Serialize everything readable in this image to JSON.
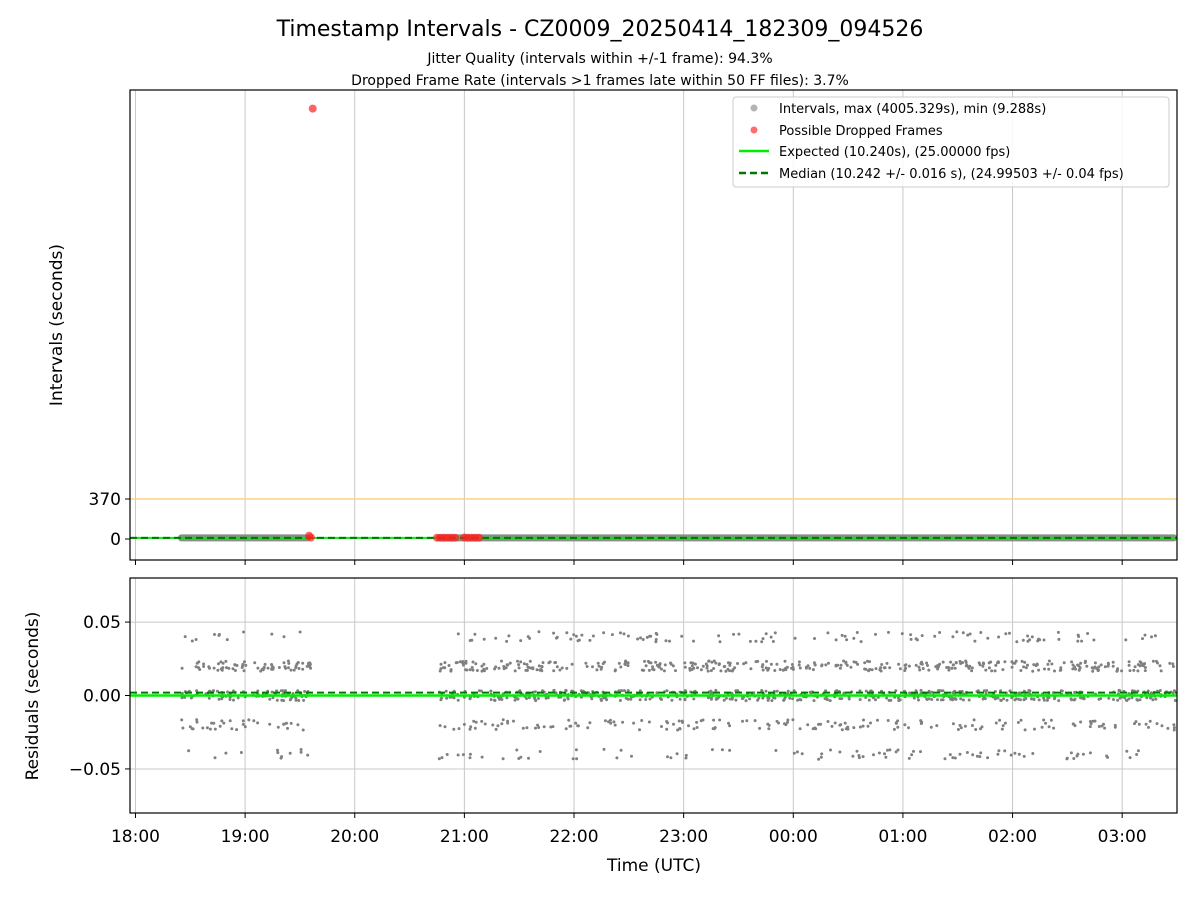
{
  "chart_data": [
    {
      "type": "scatter",
      "title": "Timestamp Intervals - CZ0009_20250414_182309_094526",
      "subtitle_1": "Jitter Quality (intervals within +/-1 frame): 94.3%",
      "subtitle_2": "Dropped Frame Rate (intervals >1 frames late within 50 FF files): 3.7%",
      "ylabel": "Intervals (seconds)",
      "yticks": [
        "0",
        "370"
      ],
      "threshold_line": 370,
      "grid": "vertical",
      "legend_position": "top-right",
      "legend": [
        "Intervals, max (4005.329s), min (9.288s)",
        "Possible Dropped Frames",
        "Expected (10.240s), (25.00000 fps)",
        "Median (10.242 +/- 0.016 s), (24.99503 +/- 0.04 fps)"
      ],
      "series": [
        {
          "name": "Intervals, max (4005.329s), min (9.288s)",
          "segments": [
            [
              "18:25",
              "19:36"
            ],
            [
              "20:46",
              "03:30"
            ]
          ],
          "value_range": [
            9.288,
            4005.329
          ]
        },
        {
          "name": "Possible Dropped Frames",
          "points": [
            {
              "x": "19:37",
              "y": 3981
            },
            {
              "x": "19:35",
              "y": 30
            },
            {
              "x": "19:36",
              "y": 14
            },
            {
              "x": "20:45",
              "y": 12
            },
            {
              "x": "20:47",
              "y": 12
            },
            {
              "x": "20:49",
              "y": 12
            },
            {
              "x": "20:51",
              "y": 12
            },
            {
              "x": "20:53",
              "y": 12
            },
            {
              "x": "20:55",
              "y": 12
            },
            {
              "x": "21:00",
              "y": 14
            },
            {
              "x": "21:02",
              "y": 12
            },
            {
              "x": "21:04",
              "y": 12
            },
            {
              "x": "21:06",
              "y": 12
            },
            {
              "x": "21:08",
              "y": 12
            }
          ]
        },
        {
          "name": "Expected (10.240s), (25.00000 fps)",
          "y": 10.24
        },
        {
          "name": "Median (10.242 +/- 0.016 s), (24.99503 +/- 0.04 fps)",
          "y": 10.242
        }
      ],
      "colors": {
        "intervals": "#808080",
        "dropped": "#ff2020",
        "expected": "#00ee00",
        "median": "#007700",
        "threshold": "#ffd27f",
        "grid": "#c8c8c8"
      }
    },
    {
      "type": "scatter",
      "xlabel": "Time (UTC)",
      "ylabel": "Residuals (seconds)",
      "xticks": [
        "18:00",
        "19:00",
        "20:00",
        "21:00",
        "22:00",
        "23:00",
        "00:00",
        "01:00",
        "02:00",
        "03:00"
      ],
      "yticks": [
        "−0.05",
        "0.00",
        "0.05"
      ],
      "ylim": [
        -0.08,
        0.08
      ],
      "xlim": [
        "17:57",
        "03:30"
      ],
      "grid": "both",
      "expected_line": 0.0,
      "median_line": 0.002,
      "residual_levels": [
        -0.04,
        -0.02,
        0.0,
        0.02,
        0.04
      ],
      "segments": [
        [
          "18:25",
          "19:36"
        ],
        [
          "20:46",
          "03:30"
        ]
      ],
      "colors": {
        "points": "#808080",
        "expected": "#00ee00",
        "median": "#007700",
        "grid": "#c8c8c8"
      }
    }
  ]
}
